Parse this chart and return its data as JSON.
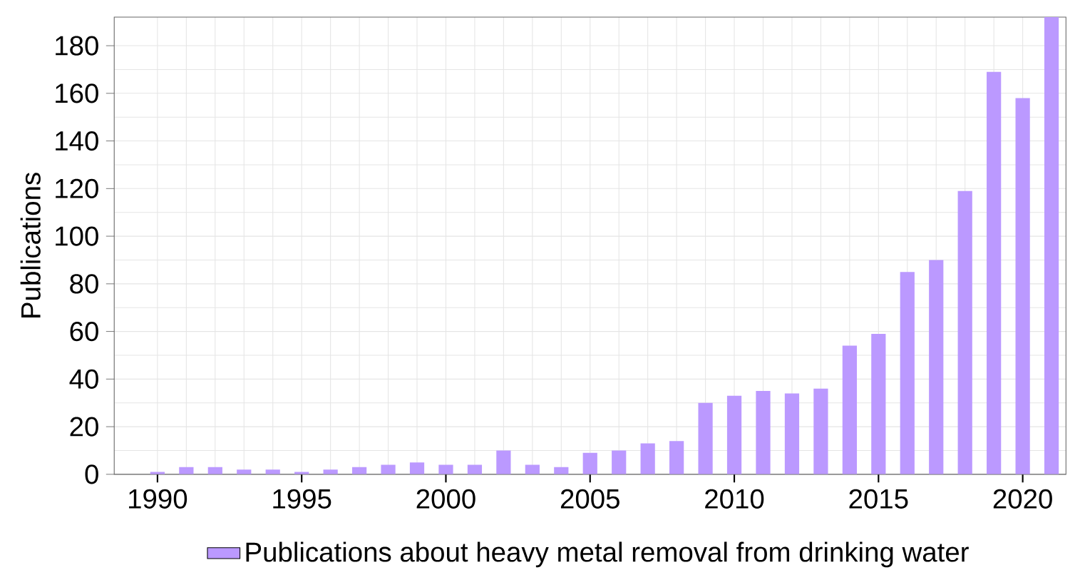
{
  "chart_data": {
    "type": "bar",
    "ylabel": "Publications",
    "x": [
      1990,
      1991,
      1992,
      1993,
      1994,
      1995,
      1996,
      1997,
      1998,
      1999,
      2000,
      2001,
      2002,
      2003,
      2004,
      2005,
      2006,
      2007,
      2008,
      2009,
      2010,
      2011,
      2012,
      2013,
      2014,
      2015,
      2016,
      2017,
      2018,
      2019,
      2020,
      2021
    ],
    "series": [
      {
        "name": "Publications about heavy metal removal from drinking water",
        "color": "#bb99ff",
        "values": [
          1,
          3,
          3,
          2,
          2,
          1,
          2,
          3,
          4,
          5,
          4,
          4,
          10,
          4,
          3,
          9,
          10,
          13,
          14,
          30,
          33,
          35,
          34,
          36,
          54,
          59,
          85,
          90,
          119,
          169,
          158,
          192
        ]
      }
    ],
    "xlim": [
      1988.5,
      2021.5
    ],
    "xticks": [
      1990,
      1995,
      2000,
      2005,
      2010,
      2015,
      2020
    ],
    "ylim": [
      0,
      192
    ],
    "yticks": [
      0,
      20,
      40,
      60,
      80,
      100,
      120,
      140,
      160,
      180
    ],
    "grid": true,
    "legend": "bottom"
  }
}
